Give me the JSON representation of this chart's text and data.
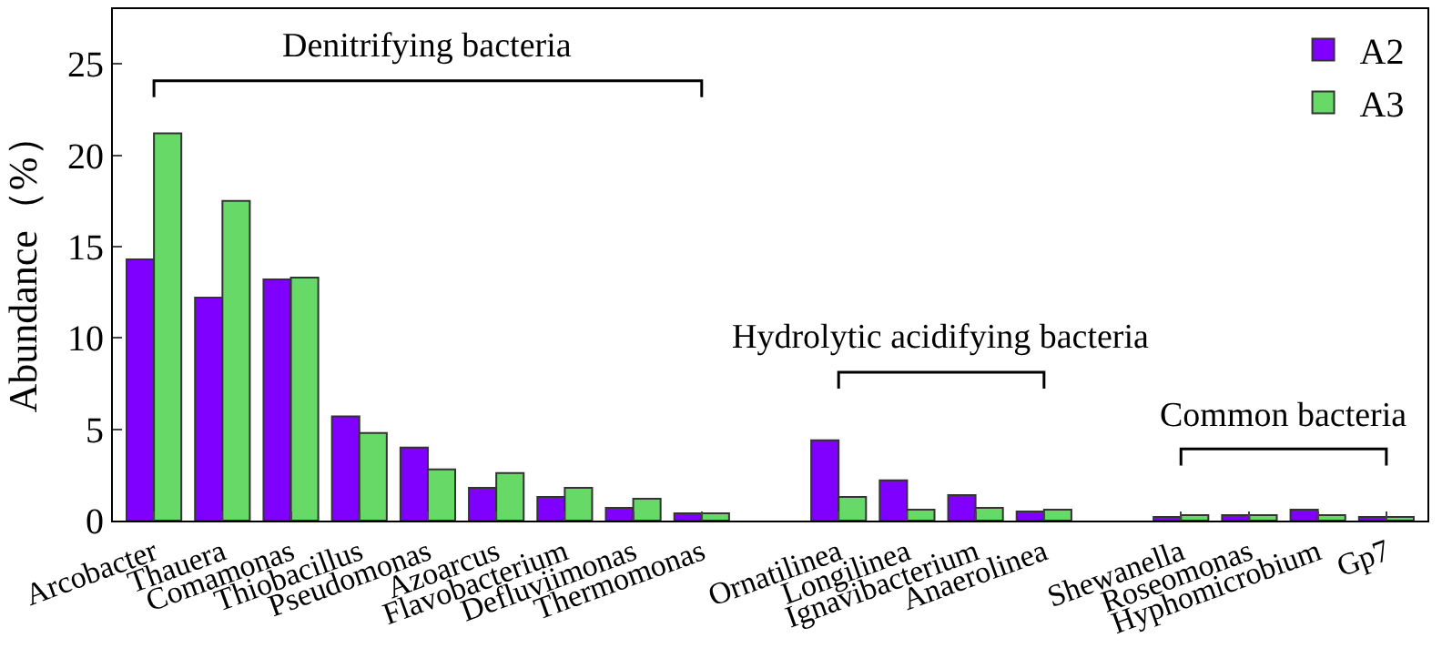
{
  "chart_data": {
    "type": "bar",
    "ylabel": "Abundance（%）",
    "categories": [
      "Arcobacter",
      "Thauera",
      "Comamonas",
      "Thiobacillus",
      "Pseudomonas",
      "Azoarcus",
      "Flavobacterium",
      "Defluviimonas",
      "Thermomonas",
      null,
      "Ornatilinea",
      "Longilinea",
      "Ignavibacterium",
      "Anaerolinea",
      null,
      "Shewanella",
      "Roseomonas",
      "Hyphomicrobium",
      "Gp7"
    ],
    "series": [
      {
        "name": "A2",
        "color": "#7f00ff",
        "values": [
          14.3,
          12.2,
          13.2,
          5.7,
          4.0,
          1.8,
          1.3,
          0.7,
          0.4,
          null,
          4.4,
          2.2,
          1.4,
          0.5,
          null,
          0.2,
          0.3,
          0.6,
          0.2
        ]
      },
      {
        "name": "A3",
        "color": "#66d966",
        "values": [
          21.2,
          17.5,
          13.3,
          4.8,
          2.8,
          2.6,
          1.8,
          1.2,
          0.4,
          null,
          1.3,
          0.6,
          0.7,
          0.6,
          null,
          0.3,
          0.3,
          0.3,
          0.2
        ]
      }
    ],
    "ylim": [
      0,
      28
    ],
    "yticks": [
      0,
      5,
      10,
      15,
      20,
      25
    ],
    "annotations": [
      "Denitrifying bacteria",
      "Hydrolytic acidifying bacteria",
      "Common bacteria"
    ],
    "legend": "top right"
  }
}
